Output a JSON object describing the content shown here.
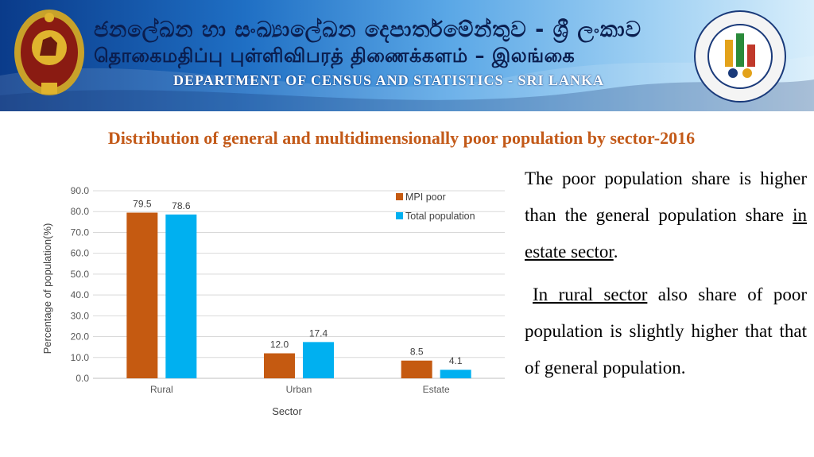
{
  "header": {
    "sinhala": "ජනලේඛන හා සංඛ්‍යාලේඛන දෙපාර්තමේන්තුව - ශ්‍රී ලංකාව",
    "tamil": "தொகைமதிப்பு புள்ளிவிபரத் திணைக்களம் – இலங்கை",
    "english": "DEPARTMENT OF CENSUS AND STATISTICS - SRI LANKA"
  },
  "title": "Distribution of general and multidimensionally poor population by sector-2016",
  "chart_data": {
    "type": "bar",
    "categories": [
      "Rural",
      "Urban",
      "Estate"
    ],
    "series": [
      {
        "name": "MPI poor",
        "values": [
          79.5,
          12.0,
          8.5
        ],
        "color": "#c55a11"
      },
      {
        "name": "Total population",
        "values": [
          78.6,
          17.4,
          4.1
        ],
        "color": "#00b0f0"
      }
    ],
    "xlabel": "Sector",
    "ylabel": "Percentage of population(%)",
    "ylim": [
      0,
      90
    ],
    "yticks": [
      "0.0",
      "10.0",
      "20.0",
      "30.0",
      "40.0",
      "50.0",
      "60.0",
      "70.0",
      "80.0",
      "90.0"
    ],
    "data_labels": [
      [
        "79.5",
        "12.0",
        "8.5"
      ],
      [
        "78.6",
        "17.4",
        "4.1"
      ]
    ],
    "grid": true,
    "legend": "top-right"
  },
  "text": {
    "para1_a": "The poor population share is higher than the general population share ",
    "para1_u": "in estate sector",
    "para1_b": ".",
    "para2_u": "In rural sector",
    "para2_b": " also share of poor population is slightly higher that that of general population."
  }
}
